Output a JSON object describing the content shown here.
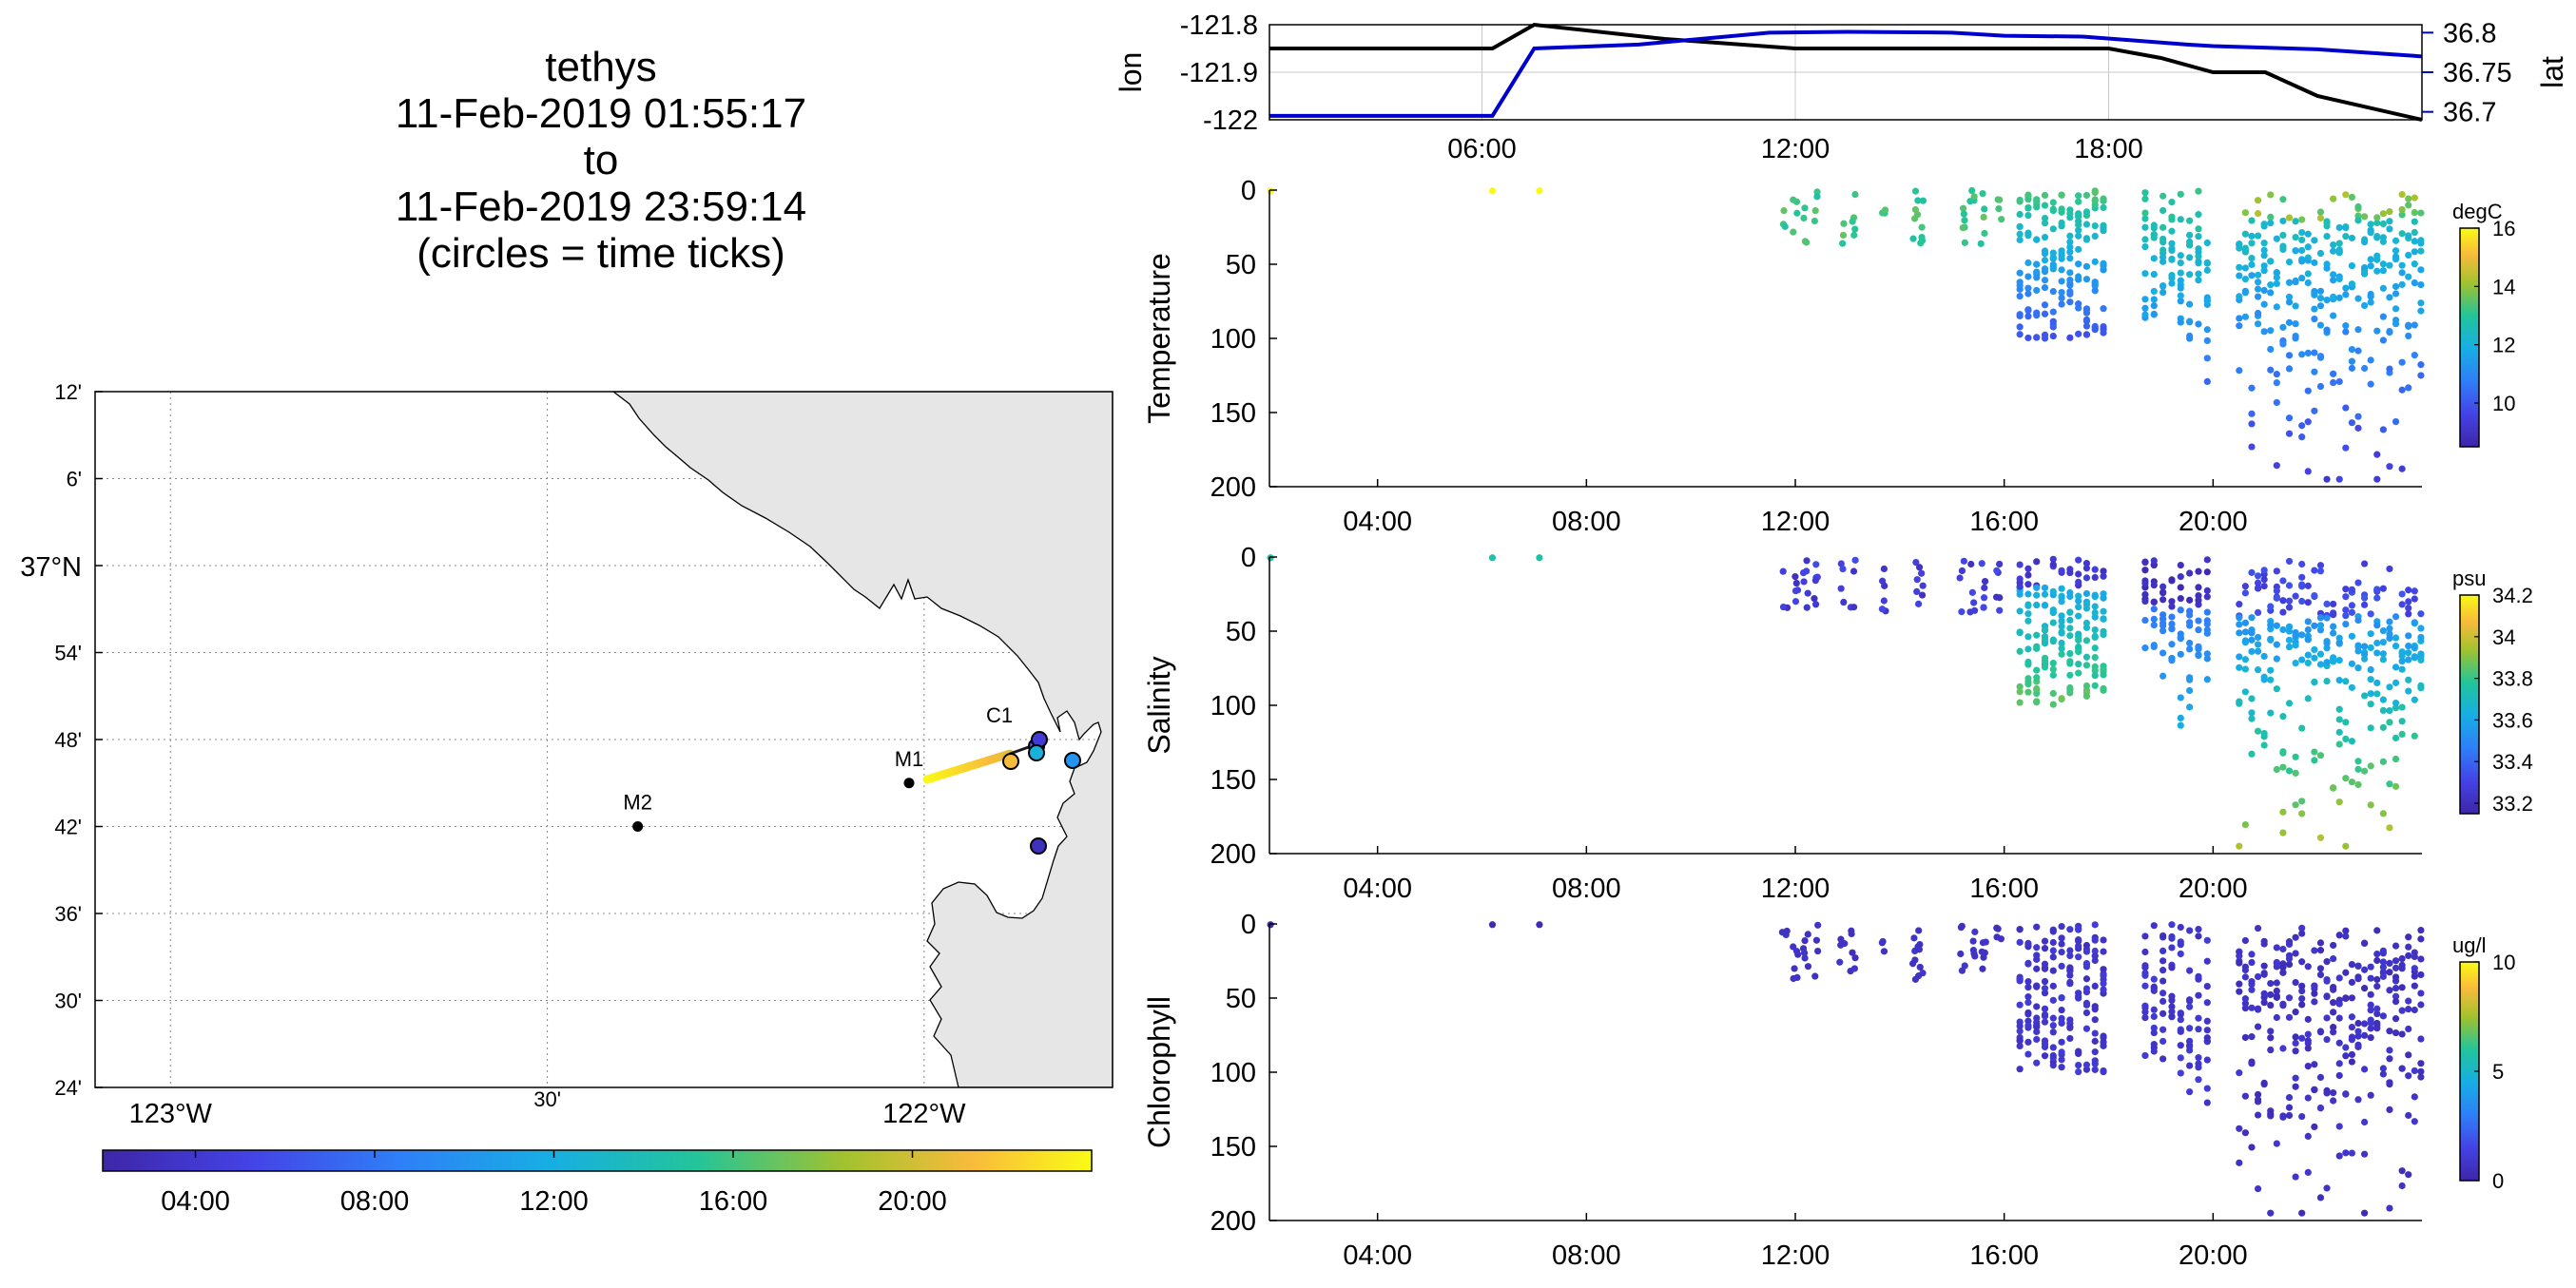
{
  "title": {
    "lines": [
      "tethys",
      "11-Feb-2019 01:55:17",
      "to",
      "11-Feb-2019 23:59:14",
      "(circles = time ticks)"
    ]
  },
  "colors": {
    "lon_line": "#000000",
    "lat_line": "#0000cc",
    "land": "#e6e6e6",
    "grid": "#c8c8c8"
  },
  "map": {
    "lat_ticks": [
      "12'",
      "6'",
      "37°N",
      "54'",
      "48'",
      "42'",
      "36'",
      "30'",
      "24'"
    ],
    "lat_tick_values": [
      37.2,
      37.1,
      37.0,
      36.9,
      36.8,
      36.7,
      36.6,
      36.5,
      36.4
    ],
    "lon_ticks": [
      "123°W",
      "30'",
      "122°W"
    ],
    "lon_tick_values": [
      -123.0,
      -122.5,
      -122.0
    ],
    "lon_range": [
      -123.1,
      -121.75
    ],
    "lat_range": [
      36.4,
      37.2
    ],
    "stations": [
      {
        "label": "M1",
        "lon": -122.02,
        "lat": 36.75
      },
      {
        "label": "M2",
        "lon": -122.38,
        "lat": 36.7
      },
      {
        "label": "C1",
        "lon": -121.9,
        "lat": 36.8
      }
    ],
    "time_colorbar_ticks": [
      "04:00",
      "08:00",
      "12:00",
      "16:00",
      "20:00"
    ]
  },
  "chart_data": [
    {
      "type": "line",
      "panel": "lon-lat",
      "ylabel": "lon",
      "ylabel_right": "lat",
      "x_ticks": [
        "06:00",
        "12:00",
        "18:00"
      ],
      "x_range_hours": [
        1.93,
        24.0
      ],
      "y_ticks": [
        "-121.8",
        "-121.9",
        "-122"
      ],
      "y2_ticks": [
        "36.8",
        "36.75",
        "36.7"
      ],
      "ylim": [
        -122.0,
        -121.8
      ],
      "y2lim": [
        36.69,
        36.81
      ],
      "series": [
        {
          "name": "lon",
          "axis": "left",
          "x": [
            1.93,
            6.2,
            7.0,
            9.5,
            12.0,
            15.0,
            18.0,
            19.0,
            20.0,
            21.0,
            22.0,
            24.0
          ],
          "values": [
            -121.85,
            -121.85,
            -121.8,
            -121.83,
            -121.85,
            -121.85,
            -121.85,
            -121.87,
            -121.9,
            -121.9,
            -121.95,
            -122.0
          ]
        },
        {
          "name": "lat",
          "axis": "right",
          "x": [
            1.93,
            6.2,
            7.0,
            9.0,
            11.5,
            13.0,
            15.0,
            16.0,
            17.5,
            18.5,
            19.5,
            20.0,
            22.0,
            24.0
          ],
          "values": [
            36.695,
            36.695,
            36.78,
            36.785,
            36.8,
            36.801,
            36.8,
            36.796,
            36.795,
            36.79,
            36.785,
            36.783,
            36.779,
            36.77
          ]
        }
      ]
    },
    {
      "type": "scatter",
      "panel": "temperature",
      "ylabel": "Temperature",
      "colorbar_label": "degC",
      "colorbar_ticks": [
        "16",
        "14",
        "12",
        "10"
      ],
      "clim": [
        8.5,
        16
      ],
      "x_ticks": [
        "04:00",
        "08:00",
        "12:00",
        "16:00",
        "20:00"
      ],
      "y_ticks": [
        "0",
        "50",
        "100",
        "150",
        "200"
      ],
      "ylim": [
        200,
        0
      ],
      "x_range_hours": [
        1.93,
        24.0
      ]
    },
    {
      "type": "scatter",
      "panel": "salinity",
      "ylabel": "Salinity",
      "colorbar_label": "psu",
      "colorbar_ticks": [
        "34.2",
        "34",
        "33.8",
        "33.6",
        "33.4",
        "33.2"
      ],
      "clim": [
        33.15,
        34.2
      ],
      "x_ticks": [
        "04:00",
        "08:00",
        "12:00",
        "16:00",
        "20:00"
      ],
      "y_ticks": [
        "0",
        "50",
        "100",
        "150",
        "200"
      ],
      "ylim": [
        200,
        0
      ],
      "x_range_hours": [
        1.93,
        24.0
      ]
    },
    {
      "type": "scatter",
      "panel": "chlorophyll",
      "ylabel": "Chlorophyll",
      "colorbar_label": "ug/l",
      "colorbar_ticks": [
        "10",
        "5",
        "0"
      ],
      "clim": [
        0,
        10
      ],
      "x_ticks": [
        "04:00",
        "08:00",
        "12:00",
        "16:00",
        "20:00"
      ],
      "y_ticks": [
        "0",
        "50",
        "100",
        "150",
        "200"
      ],
      "ylim": [
        200,
        0
      ],
      "x_range_hours": [
        1.93,
        24.0
      ]
    }
  ]
}
